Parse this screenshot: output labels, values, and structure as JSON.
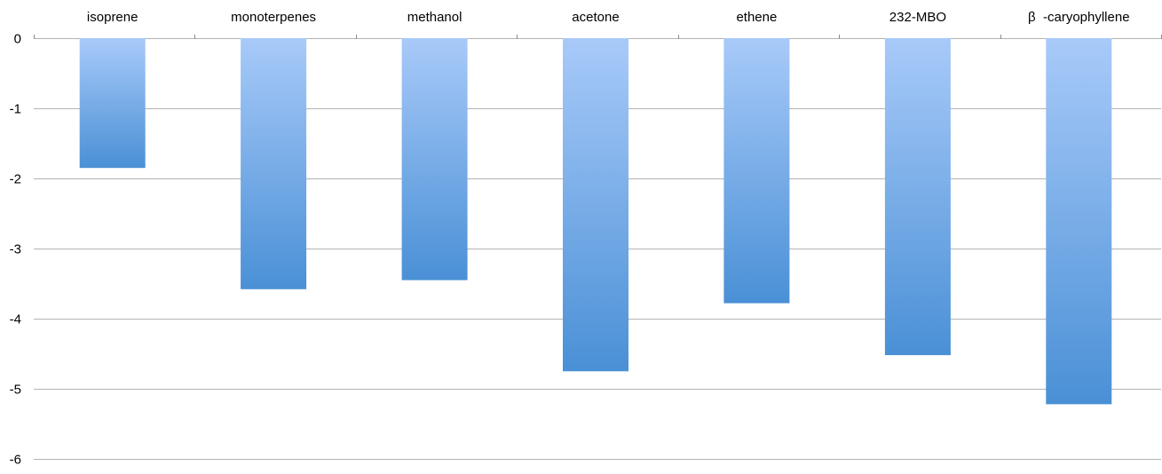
{
  "chart_data": {
    "type": "bar",
    "title": "",
    "xlabel": "",
    "ylabel": "",
    "categories": [
      "isoprene",
      "monoterpenes",
      "methanol",
      "acetone",
      "ethene",
      "232-MBO",
      "β  -caryophyllene"
    ],
    "values": [
      -1.85,
      -3.58,
      -3.45,
      -4.75,
      -3.78,
      -4.52,
      -5.22
    ],
    "ylim": [
      -6,
      0
    ],
    "yticks": [
      0,
      -1,
      -2,
      -3,
      -4,
      -5,
      -6
    ],
    "ytick_labels": [
      "0",
      "-1",
      "-2",
      "-3",
      "-4",
      "-5",
      "-6"
    ],
    "grid": true,
    "legend": "none",
    "category_axis_position": "top",
    "colors": {
      "bar_top": "#a8caf9",
      "bar_bottom": "#4a90d6",
      "grid": "#b3b3b3"
    }
  }
}
